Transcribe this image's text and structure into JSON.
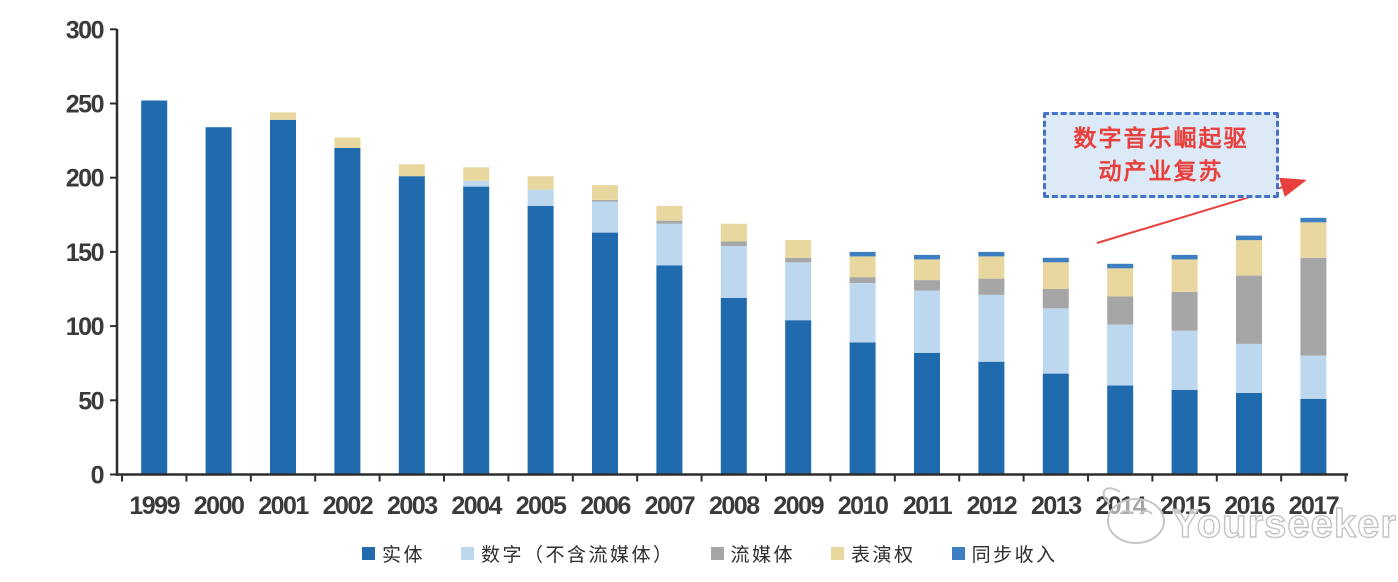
{
  "chart_data": {
    "type": "bar",
    "stacked": true,
    "title": "",
    "xlabel": "",
    "ylabel": "",
    "categories": [
      "1999",
      "2000",
      "2001",
      "2002",
      "2003",
      "2004",
      "2005",
      "2006",
      "2007",
      "2008",
      "2009",
      "2010",
      "2011",
      "2012",
      "2013",
      "2014",
      "2015",
      "2016",
      "2017"
    ],
    "series": [
      {
        "name": "实体",
        "color": "#1F6BAE",
        "values": [
          252,
          234,
          239,
          220,
          201,
          194,
          181,
          163,
          141,
          119,
          104,
          89,
          82,
          76,
          68,
          60,
          57,
          55,
          51
        ]
      },
      {
        "name": "数字（不含流媒体）",
        "color": "#BDD7EE",
        "values": [
          0,
          0,
          0,
          0,
          0,
          4,
          11,
          21,
          28,
          35,
          39,
          40,
          42,
          45,
          44,
          41,
          40,
          33,
          29
        ]
      },
      {
        "name": "流媒体",
        "color": "#A6A6A6",
        "values": [
          0,
          0,
          0,
          0,
          0,
          0,
          0,
          1,
          2,
          3,
          3,
          4,
          7,
          11,
          13,
          19,
          26,
          46,
          66
        ]
      },
      {
        "name": "表演权",
        "color": "#E8D79E",
        "values": [
          0,
          0,
          5,
          7,
          8,
          9,
          9,
          10,
          10,
          12,
          12,
          14,
          14,
          15,
          18,
          19,
          22,
          24,
          24
        ]
      },
      {
        "name": "同步收入",
        "color": "#3E7FC1",
        "values": [
          0,
          0,
          0,
          0,
          0,
          0,
          0,
          0,
          0,
          0,
          0,
          3,
          3,
          3,
          3,
          3,
          3,
          3,
          3
        ]
      }
    ],
    "ylim": [
      0,
      300
    ],
    "yticks": [
      0,
      50,
      100,
      150,
      200,
      250,
      300
    ],
    "grid": false,
    "legend_position": "bottom",
    "axis_color": "#2D2D2D",
    "tick_label_color": "#3A3A3A"
  },
  "annotation": {
    "line1": "数字音乐崛起驱",
    "line2": "动产业复苏",
    "text_color": "#E8403C",
    "border_color": "#4472C4",
    "fill_color": "#DCE9F6",
    "arrow_color": "#E8403C"
  },
  "watermark": {
    "text": "Yourseeker"
  }
}
